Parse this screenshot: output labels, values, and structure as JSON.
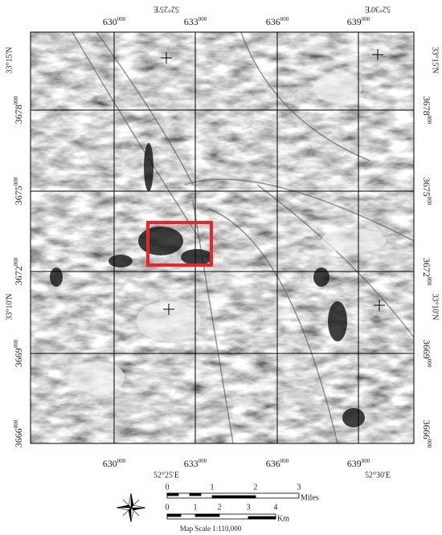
{
  "map": {
    "longitudes": [
      "52°25'E",
      "52°30'E"
    ],
    "latitudes": [
      "33°15'N",
      "33°10'N"
    ],
    "eastings": [
      {
        "main": "630",
        "sup": "000"
      },
      {
        "main": "633",
        "sup": "000"
      },
      {
        "main": "636",
        "sup": "000"
      },
      {
        "main": "639",
        "sup": "000"
      }
    ],
    "northings": [
      {
        "main": "3678",
        "sup": "000"
      },
      {
        "main": "3675",
        "sup": "000"
      },
      {
        "main": "3672",
        "sup": "000"
      },
      {
        "main": "3669",
        "sup": "000"
      },
      {
        "main": "3666",
        "sup": "000"
      }
    ],
    "scale_bar": {
      "miles_ticks": [
        "0",
        "1",
        "2",
        "3"
      ],
      "miles_unit": "Miles",
      "km_ticks": [
        "0",
        "1",
        "2",
        "3",
        "4"
      ],
      "km_unit": "Km",
      "caption": "Map Scale 1:110,000"
    }
  }
}
